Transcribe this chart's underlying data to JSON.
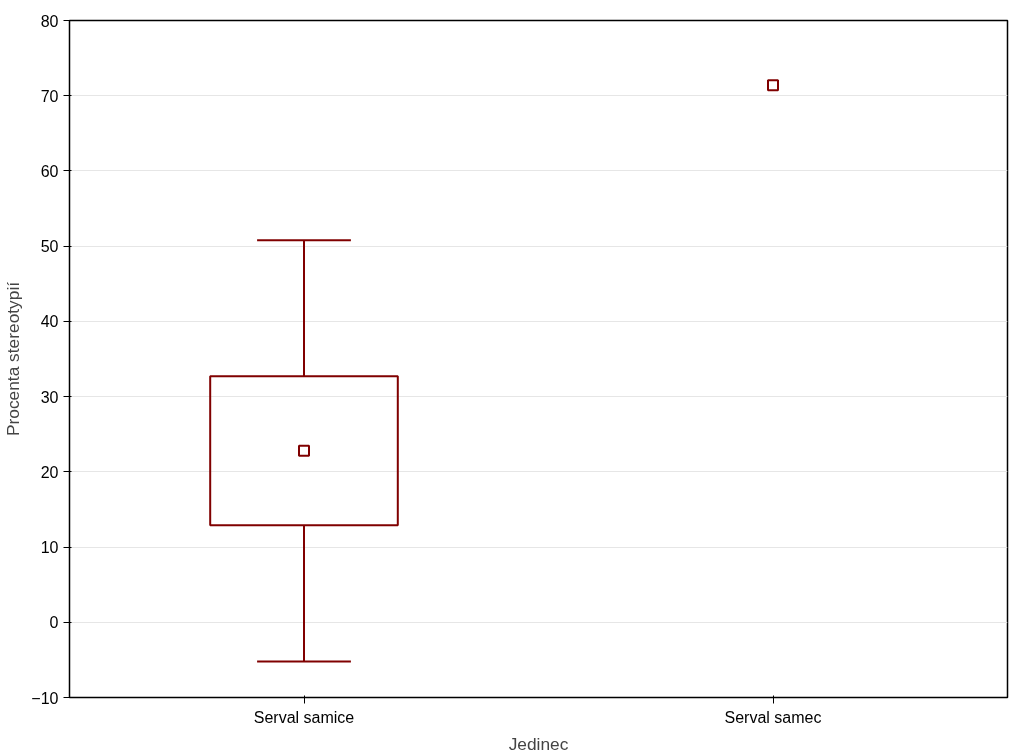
{
  "chart_data": {
    "type": "box",
    "xlabel": "Jedinec",
    "ylabel": "Procenta stereotypií",
    "categories": [
      "Serval samice",
      "Serval samec"
    ],
    "series": [
      {
        "color": "#800000",
        "boxes": [
          {
            "low": -5.2,
            "q1": 12.9,
            "median": 22.8,
            "q3": 32.7,
            "high": 50.8
          },
          null
        ]
      },
      {
        "type": "scatter",
        "color": "#800000",
        "x": [
          "Serval samec"
        ],
        "values": [
          71.4
        ]
      }
    ],
    "ylim": [
      -10,
      80
    ],
    "yticks": [
      -10,
      0,
      10,
      20,
      30,
      40,
      50,
      60,
      70,
      80
    ],
    "grid": "y",
    "marker": "square"
  }
}
